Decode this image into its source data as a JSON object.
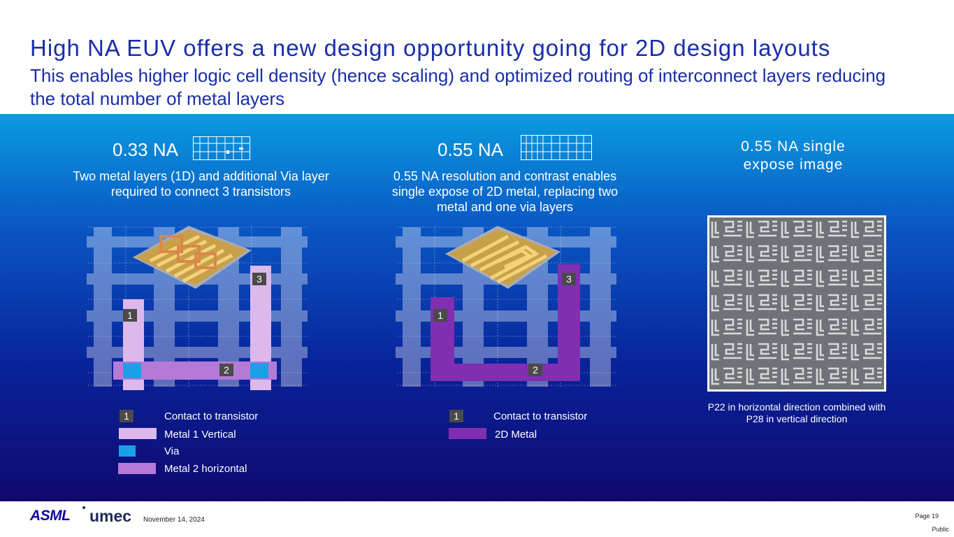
{
  "header": {
    "title": "High NA EUV offers a new design opportunity going for 2D design layouts",
    "subtitle": "This enables higher logic cell density (hence scaling) and optimized routing of interconnect layers reducing the total number of metal layers"
  },
  "left": {
    "na_label": "0.33 NA",
    "description": "Two metal layers (1D) and additional Via layer required to connect 3 transistors",
    "markers": [
      "1",
      "2",
      "3"
    ],
    "legend": {
      "contact_num": "1",
      "contact": "Contact to transistor",
      "metal1": "Metal 1 Vertical",
      "via": "Via",
      "metal2": "Metal 2 horizontal"
    }
  },
  "middle": {
    "na_label": "0.55 NA",
    "description": "0.55 NA resolution and contrast enables single expose of 2D metal, replacing two metal and one via layers",
    "markers": [
      "1",
      "2",
      "3"
    ],
    "legend": {
      "contact_num": "1",
      "contact": "Contact to transistor",
      "metal2d": "2D Metal"
    }
  },
  "right": {
    "title": "0.55 NA single expose image",
    "caption": "P22 in horizontal direction combined with P28 in vertical direction"
  },
  "footer": {
    "logo_asml": "ASML",
    "logo_imec": "umec",
    "date": "November 14, 2024",
    "page": "Page 19",
    "classification": "Public"
  },
  "colors": {
    "title": "#1a2da8",
    "metal1": "#dcb8ec",
    "metal2": "#b57ad6",
    "via": "#1aa0e6",
    "metal2d": "#7f2fb0",
    "marker": "#4a4a4a"
  }
}
